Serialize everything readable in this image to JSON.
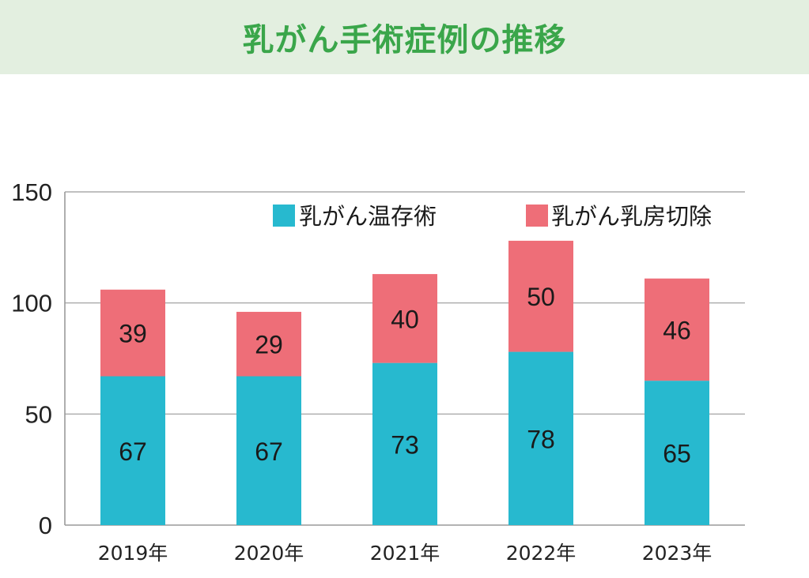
{
  "title": "乳がん手術症例の推移",
  "colors": {
    "title_bg": "#e3efe0",
    "title_text": "#3aa64a",
    "series_0": "#27b9cf",
    "series_1": "#ee6e78",
    "grid": "#9a9a9a"
  },
  "chart_data": {
    "type": "bar",
    "stacked": true,
    "categories": [
      "2019年",
      "2020年",
      "2021年",
      "2022年",
      "2023年"
    ],
    "series": [
      {
        "name": "乳がん温存術",
        "values": [
          67,
          67,
          73,
          78,
          65
        ]
      },
      {
        "name": "乳がん乳房切除",
        "values": [
          39,
          29,
          40,
          50,
          46
        ]
      }
    ],
    "ylim": [
      0,
      150
    ],
    "yticks": [
      "0",
      "50",
      "100",
      "150"
    ],
    "xlabel": "",
    "ylabel": "",
    "grid": true,
    "legend": "top-right"
  }
}
